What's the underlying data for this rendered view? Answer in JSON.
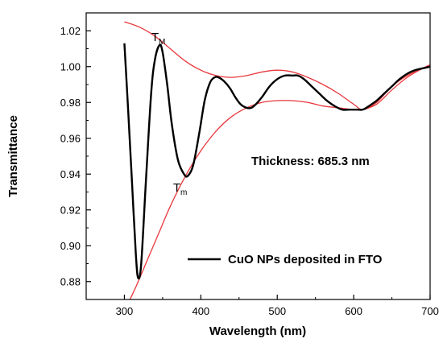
{
  "chart_data": {
    "type": "line",
    "xlabel": "Wavelength (nm)",
    "ylabel": "Transmittance",
    "xlim": [
      250,
      700
    ],
    "ylim": [
      0.87,
      1.03
    ],
    "x_ticks": [
      "300",
      "400",
      "500",
      "600",
      "700"
    ],
    "x_tick_values": [
      300,
      400,
      500,
      600,
      700
    ],
    "y_ticks": [
      "0.88",
      "0.90",
      "0.92",
      "0.94",
      "0.96",
      "0.98",
      "1.00",
      "1.02"
    ],
    "y_tick_values": [
      0.88,
      0.9,
      0.92,
      0.94,
      0.96,
      0.98,
      1.0,
      1.02
    ],
    "grid": false,
    "legend_position": "bottom-right",
    "annotations": {
      "thickness": "Thickness: 685.3 nm",
      "tmax_main": "T",
      "tmax_sub": "M",
      "tmin_main": "T",
      "tmin_sub": "m"
    },
    "series": [
      {
        "name": "CuO NPs deposited in FTO",
        "color": "#000000",
        "x": [
          300,
          305,
          310,
          315,
          318,
          322,
          328,
          335,
          340,
          346,
          350,
          356,
          362,
          370,
          378,
          383,
          390,
          398,
          405,
          412,
          418,
          423,
          430,
          438,
          445,
          452,
          460,
          466,
          472,
          480,
          490,
          500,
          510,
          520,
          527,
          535,
          545,
          555,
          565,
          575,
          585,
          595,
          605,
          612,
          620,
          630,
          640,
          650,
          660,
          670,
          680,
          690,
          700
        ],
        "y": [
          1.013,
          0.975,
          0.935,
          0.895,
          0.882,
          0.89,
          0.935,
          0.985,
          1.004,
          1.012,
          1.008,
          0.99,
          0.968,
          0.948,
          0.94,
          0.939,
          0.945,
          0.963,
          0.981,
          0.991,
          0.994,
          0.994,
          0.992,
          0.988,
          0.983,
          0.979,
          0.977,
          0.977,
          0.979,
          0.983,
          0.989,
          0.993,
          0.995,
          0.995,
          0.995,
          0.993,
          0.989,
          0.985,
          0.981,
          0.978,
          0.976,
          0.976,
          0.976,
          0.976,
          0.978,
          0.981,
          0.985,
          0.989,
          0.993,
          0.996,
          0.998,
          0.999,
          1.0
        ]
      },
      {
        "name": "",
        "color": "#e8383d",
        "x": [
          300,
          320,
          340,
          360,
          380,
          400,
          420,
          440,
          460,
          480,
          500,
          520,
          540,
          560,
          580,
          600,
          612,
          630,
          650,
          670,
          690,
          700
        ],
        "y": [
          1.025,
          1.022,
          1.017,
          1.01,
          1.003,
          0.998,
          0.995,
          0.994,
          0.995,
          0.997,
          0.998,
          0.997,
          0.994,
          0.99,
          0.985,
          0.979,
          0.976,
          0.98,
          0.989,
          0.995,
          0.999,
          1.001
        ]
      },
      {
        "name": "",
        "color": "#e8383d",
        "x": [
          305,
          315,
          330,
          345,
          360,
          380,
          400,
          420,
          440,
          460,
          480,
          500,
          520,
          540,
          560,
          580,
          600,
          612,
          630,
          650,
          670,
          690,
          700
        ],
        "y": [
          0.868,
          0.877,
          0.892,
          0.907,
          0.922,
          0.939,
          0.953,
          0.964,
          0.972,
          0.977,
          0.98,
          0.981,
          0.981,
          0.98,
          0.978,
          0.977,
          0.976,
          0.976,
          0.979,
          0.987,
          0.994,
          0.999,
          1.001
        ]
      }
    ]
  }
}
